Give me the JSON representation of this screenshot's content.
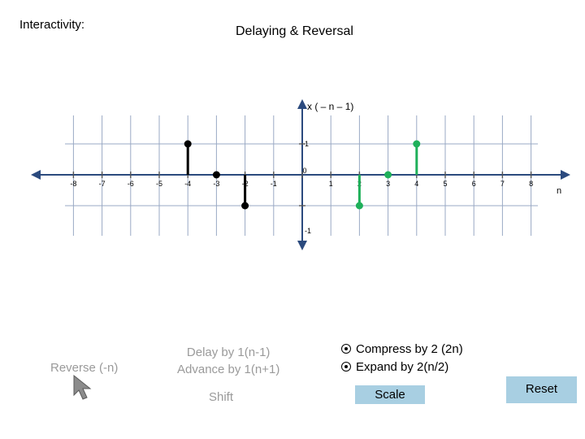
{
  "header": {
    "interactivity_label": "Interactivity:",
    "title": "Delaying & Reversal"
  },
  "chart_data": {
    "type": "stem",
    "title": "x ( – n – 1)",
    "xlabel": "n",
    "ylabel": "",
    "x_ticks": [
      "-8",
      "-7",
      "-6",
      "-5",
      "-4",
      "-3",
      "-2",
      "-1",
      "0",
      "1",
      "2",
      "3",
      "4",
      "5",
      "6",
      "7",
      "8"
    ],
    "y_ticks": [
      "1",
      "-1"
    ],
    "xlim": [
      -9,
      9
    ],
    "ylim": [
      -3,
      5
    ],
    "grid": true,
    "series": [
      {
        "color": "#000000",
        "points": [
          {
            "x": -4,
            "y": 1
          },
          {
            "x": -3,
            "y": 0
          },
          {
            "x": -2,
            "y": -1
          }
        ]
      },
      {
        "color": "#1fb05a",
        "points": [
          {
            "x": 2,
            "y": -1
          },
          {
            "x": 3,
            "y": 0
          },
          {
            "x": 4,
            "y": 1
          }
        ]
      }
    ]
  },
  "controls": {
    "reverse": "Reverse (-n)",
    "delay": "Delay by 1(n-1)",
    "advance": "Advance by 1(n+1)",
    "shift": "Shift",
    "compress": "Compress by 2 (2n)",
    "expand": "Expand by 2(n/2)",
    "scale": "Scale",
    "reset": "Reset"
  },
  "cursor_icon": "arrow-pointer-icon"
}
